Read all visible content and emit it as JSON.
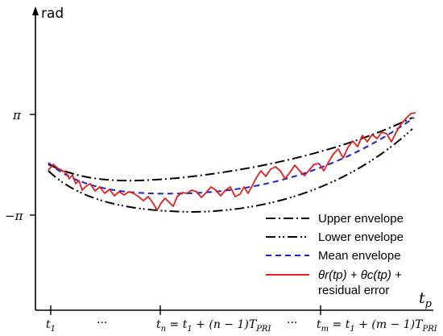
{
  "axes": {
    "y_label": "rad",
    "x_label": "t",
    "x_label_sub": "p",
    "y_ticks": {
      "pi": "π",
      "neg_pi": "−π"
    }
  },
  "x_ticks": {
    "t1": "t",
    "t1_sub": "1",
    "dots_1": "···",
    "tn": "t",
    "tn_sub": "n",
    "tn_formula": " = t",
    "tn_formula_sub": "1",
    "tn_formula_tail": " + (n − 1)T",
    "tn_formula_tail_sub": "PRI",
    "dots_2": "···",
    "tm": "t",
    "tm_sub": "m",
    "tm_formula": " = t",
    "tm_formula_sub": "1",
    "tm_formula_tail": " + (m − 1)T",
    "tm_formula_tail_sub": "PRI"
  },
  "legend": {
    "upper": "Upper envelope",
    "lower": "Lower envelope",
    "mean": "Mean envelope",
    "signal_line1": "θr(tp) + θc(tp) +",
    "signal_line2": "residual error"
  },
  "colors": {
    "envelope": "#000000",
    "mean": "#1f1fcc",
    "signal": "#e0201a"
  }
}
